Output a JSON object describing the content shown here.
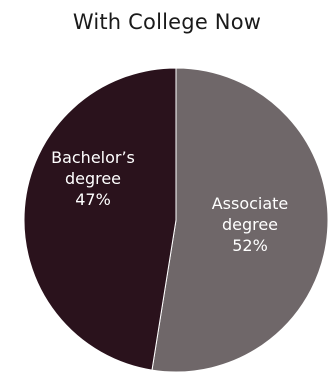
{
  "chart_data": {
    "type": "pie",
    "title": "With College Now",
    "slices": [
      {
        "name": "Associate degree",
        "label_lines": [
          "Associate",
          "degree"
        ],
        "value": 52,
        "value_label": "52%",
        "color": "#6f6769"
      },
      {
        "name": "Bachelor's degree",
        "label_lines": [
          "Bachelor’s",
          "degree"
        ],
        "value": 47,
        "value_label": "47%",
        "color": "#2a121c"
      }
    ],
    "slice_edge_color": "#ffffff"
  }
}
